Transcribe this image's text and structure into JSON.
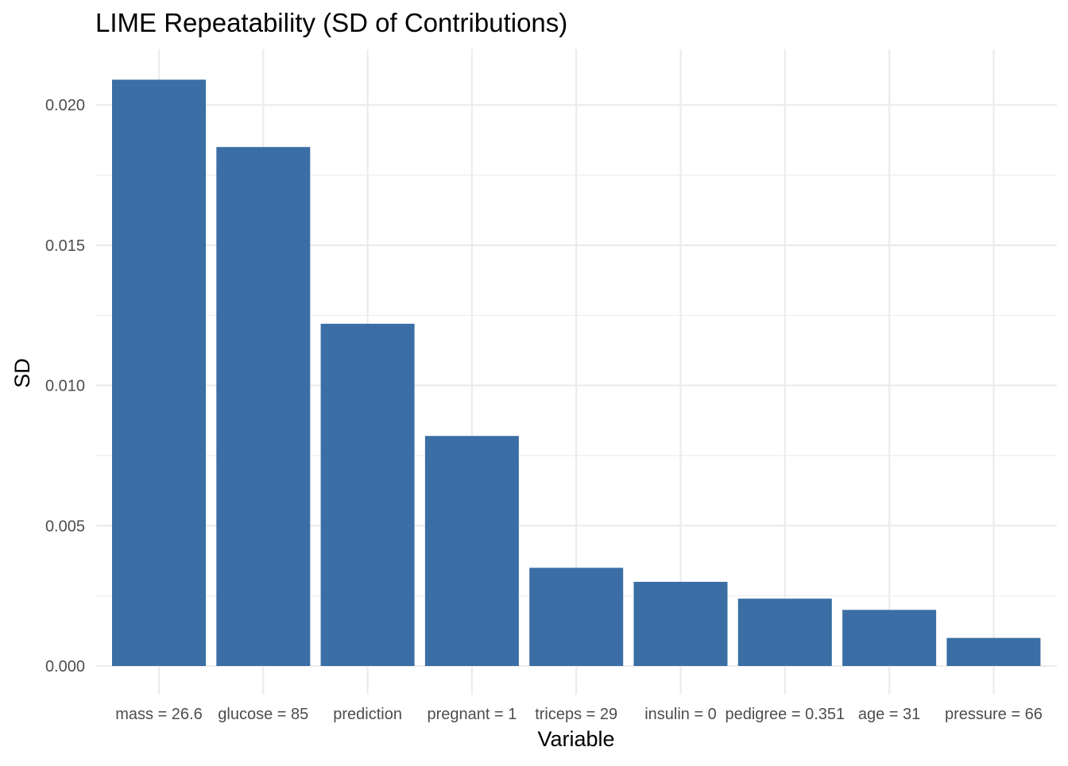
{
  "chart_data": {
    "type": "bar",
    "title": "LIME Repeatability (SD of Contributions)",
    "xlabel": "Variable",
    "ylabel": "SD",
    "categories": [
      "mass = 26.6",
      "glucose = 85",
      "prediction",
      "pregnant = 1",
      "triceps = 29",
      "insulin = 0",
      "pedigree = 0.351",
      "age = 31",
      "pressure = 66"
    ],
    "values": [
      0.0209,
      0.0185,
      0.0122,
      0.0082,
      0.0035,
      0.003,
      0.0024,
      0.002,
      0.001
    ],
    "ylim": [
      0,
      0.0209
    ],
    "yticks": [
      0.0,
      0.005,
      0.01,
      0.015,
      0.02
    ],
    "ytick_labels": [
      "0.000",
      "0.005",
      "0.010",
      "0.015",
      "0.020"
    ],
    "bar_color": "#3a6ea5",
    "grid": true,
    "legend": "none"
  }
}
